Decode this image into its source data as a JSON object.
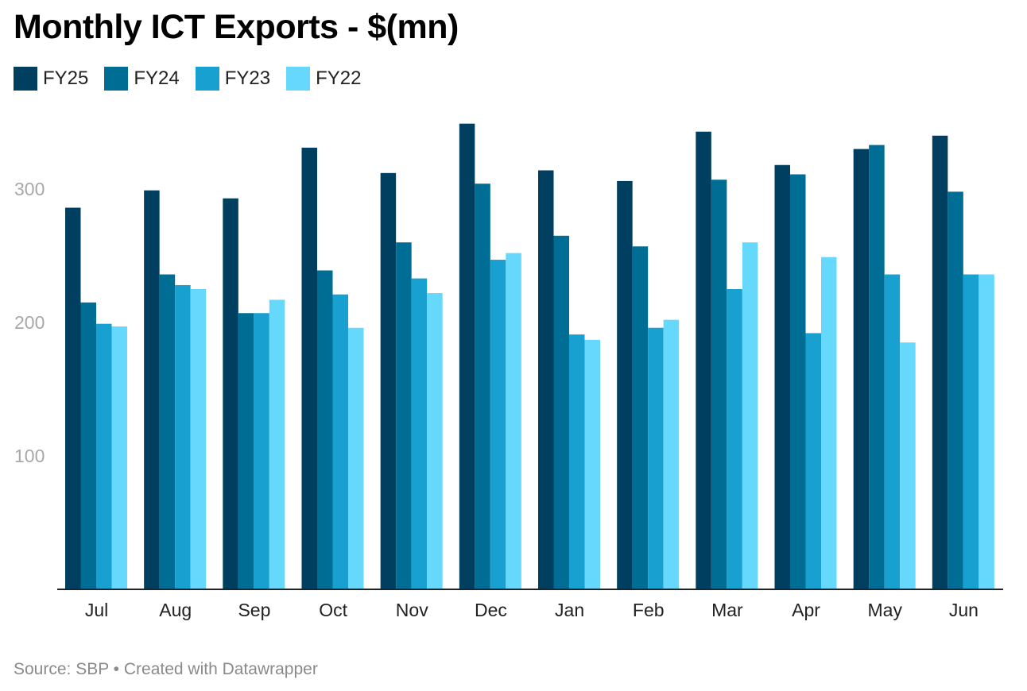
{
  "chart_data": {
    "type": "bar",
    "title": "Monthly ICT Exports - $(mn)",
    "xlabel": "",
    "ylabel": "",
    "ylim": [
      0,
      350
    ],
    "yticks": [
      100,
      200,
      300
    ],
    "grid": false,
    "legend_position": "top-left",
    "categories": [
      "Jul",
      "Aug",
      "Sep",
      "Oct",
      "Nov",
      "Dec",
      "Jan",
      "Feb",
      "Mar",
      "Apr",
      "May",
      "Jun"
    ],
    "series": [
      {
        "name": "FY25",
        "color": "#003f5f",
        "values": [
          286,
          299,
          293,
          331,
          312,
          349,
          314,
          306,
          343,
          318,
          330,
          340
        ]
      },
      {
        "name": "FY24",
        "color": "#006d94",
        "values": [
          215,
          236,
          207,
          239,
          260,
          304,
          265,
          257,
          307,
          311,
          333,
          298
        ]
      },
      {
        "name": "FY23",
        "color": "#18a1d0",
        "values": [
          199,
          228,
          207,
          221,
          233,
          247,
          191,
          196,
          225,
          192,
          236,
          236
        ]
      },
      {
        "name": "FY22",
        "color": "#66d8fb",
        "values": [
          197,
          225,
          217,
          196,
          222,
          252,
          187,
          202,
          260,
          249,
          185,
          236
        ]
      }
    ]
  },
  "footer": {
    "source": "Source: SBP • Created with Datawrapper"
  }
}
